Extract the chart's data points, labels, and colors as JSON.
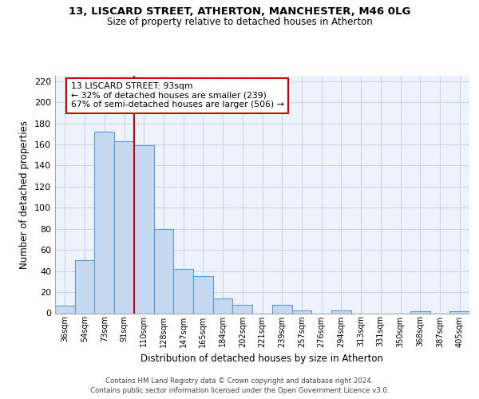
{
  "title": "13, LISCARD STREET, ATHERTON, MANCHESTER, M46 0LG",
  "subtitle": "Size of property relative to detached houses in Atherton",
  "xlabel": "Distribution of detached houses by size in Atherton",
  "ylabel": "Number of detached properties",
  "bin_labels": [
    "36sqm",
    "54sqm",
    "73sqm",
    "91sqm",
    "110sqm",
    "128sqm",
    "147sqm",
    "165sqm",
    "184sqm",
    "202sqm",
    "221sqm",
    "239sqm",
    "257sqm",
    "276sqm",
    "294sqm",
    "313sqm",
    "331sqm",
    "350sqm",
    "368sqm",
    "387sqm",
    "405sqm"
  ],
  "bar_values": [
    7,
    50,
    172,
    163,
    159,
    80,
    42,
    35,
    14,
    8,
    0,
    8,
    3,
    0,
    3,
    0,
    0,
    0,
    2,
    0,
    2
  ],
  "bar_color": "#c5d8f0",
  "bar_edge_color": "#5b9bd5",
  "vline_color": "#cc0000",
  "vline_x": 3.5,
  "annotation_text": "13 LISCARD STREET: 93sqm\n← 32% of detached houses are smaller (239)\n67% of semi-detached houses are larger (506) →",
  "annotation_box_color": "white",
  "annotation_box_edge_color": "#cc0000",
  "ylim": [
    0,
    225
  ],
  "yticks": [
    0,
    20,
    40,
    60,
    80,
    100,
    120,
    140,
    160,
    180,
    200,
    220
  ],
  "footer_line1": "Contains HM Land Registry data © Crown copyright and database right 2024.",
  "footer_line2": "Contains public sector information licensed under the Open Government Licence v3.0.",
  "grid_color": "#c8d4e8",
  "background_color": "#eef2fa"
}
